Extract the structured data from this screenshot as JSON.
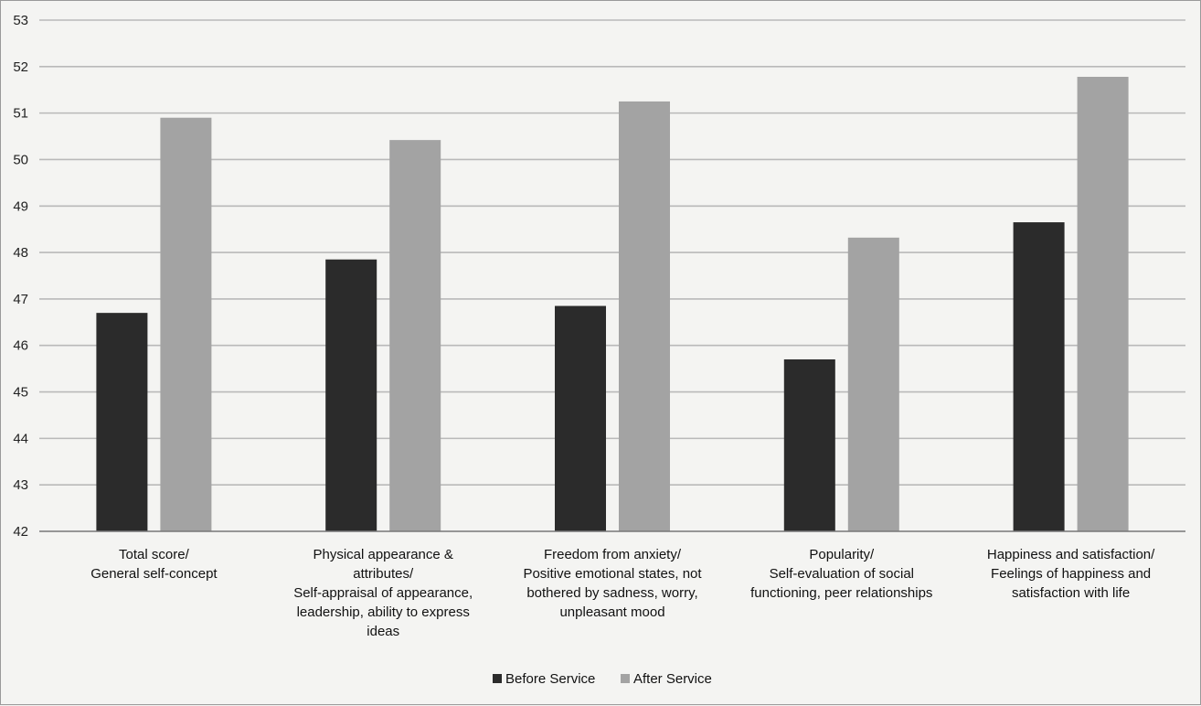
{
  "chart_data": {
    "type": "bar",
    "categories": [
      [
        "Total score/",
        "General self-concept"
      ],
      [
        "Physical appearance &",
        "attributes/",
        "Self-appraisal of appearance,",
        "leadership, ability to express",
        "ideas"
      ],
      [
        "Freedom from anxiety/",
        "Positive emotional states, not",
        "bothered by sadness, worry,",
        "unpleasant mood"
      ],
      [
        "Popularity/",
        "Self-evaluation of social",
        "functioning, peer relationships"
      ],
      [
        "Happiness and satisfaction/",
        "Feelings of happiness and",
        "satisfaction with life"
      ]
    ],
    "series": [
      {
        "name": "Before Service",
        "color": "#2b2b2b",
        "values": [
          46.7,
          47.85,
          46.85,
          45.7,
          48.65
        ]
      },
      {
        "name": "After Service",
        "color": "#a3a3a3",
        "values": [
          50.9,
          50.42,
          51.25,
          48.32,
          51.78
        ]
      }
    ],
    "ylim": [
      42,
      53
    ],
    "yticks": [
      42,
      43,
      44,
      45,
      46,
      47,
      48,
      49,
      50,
      51,
      52,
      53
    ],
    "grid": true,
    "legend_position": "bottom-center",
    "title": "",
    "xlabel": "",
    "ylabel": ""
  }
}
